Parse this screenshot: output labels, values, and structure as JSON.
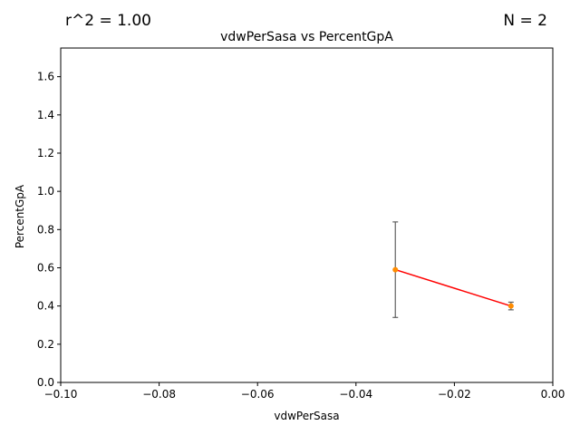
{
  "annotations": {
    "r_squared": "r^2 = 1.00",
    "n_count": "N = 2"
  },
  "colors": {
    "fit_line": "#ff0000",
    "points": "#ff8c00",
    "error_bars": "#606060",
    "axes": "#000000"
  },
  "chart_data": {
    "type": "scatter",
    "title": "vdwPerSasa vs PercentGpA",
    "xlabel": "vdwPerSasa",
    "ylabel": "PercentGpA",
    "xlim": [
      -0.1,
      0.0
    ],
    "ylim": [
      0.0,
      1.75
    ],
    "x_ticks": [
      -0.1,
      -0.08,
      -0.06,
      -0.04,
      -0.02,
      0.0
    ],
    "x_tick_labels": [
      "−0.10",
      "−0.08",
      "−0.06",
      "−0.04",
      "−0.02",
      "0.00"
    ],
    "y_ticks": [
      0.0,
      0.2,
      0.4,
      0.6,
      0.8,
      1.0,
      1.2,
      1.4,
      1.6
    ],
    "y_tick_labels": [
      "0.0",
      "0.2",
      "0.4",
      "0.6",
      "0.8",
      "1.0",
      "1.2",
      "1.4",
      "1.6"
    ],
    "grid": false,
    "series": [
      {
        "points": [
          {
            "x": -0.032,
            "y": 0.59,
            "err_low": 0.34,
            "err_high": 0.84
          },
          {
            "x": -0.0085,
            "y": 0.4,
            "err_low": 0.38,
            "err_high": 0.42
          }
        ]
      }
    ],
    "fit_line": {
      "x": [
        -0.032,
        -0.0085
      ],
      "y": [
        0.59,
        0.4
      ]
    }
  }
}
